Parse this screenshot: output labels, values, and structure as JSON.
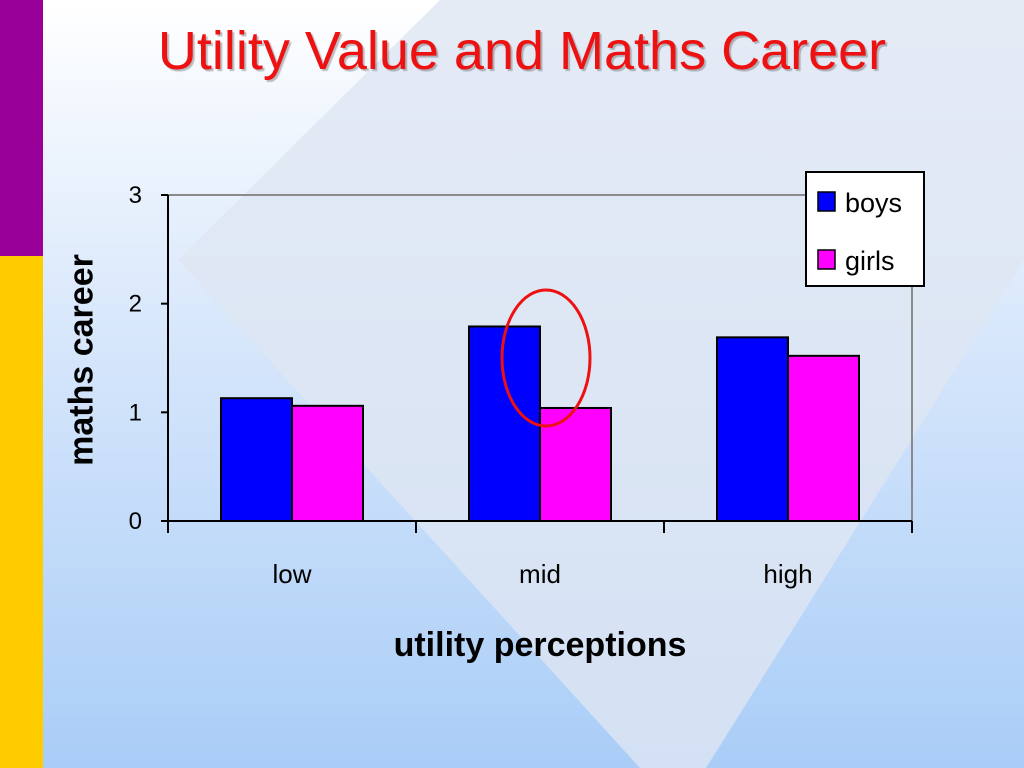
{
  "slide": {
    "title": "Utility Value and Maths Career"
  },
  "colors": {
    "background_top": "#ffffff",
    "background_bottom": "#a9cdf7",
    "band_purple": "#990099",
    "band_yellow": "#ffcc00",
    "title": "#ee1111",
    "boys": "#0000ff",
    "girls": "#ff00ff",
    "highlight_ellipse": "#ee1111"
  },
  "chart_data": {
    "type": "bar",
    "title": "",
    "xlabel": "utility perceptions",
    "ylabel": "maths career",
    "categories": [
      "low",
      "mid",
      "high"
    ],
    "series": [
      {
        "name": "boys",
        "values": [
          1.13,
          1.79,
          1.69
        ],
        "color": "#0000ff"
      },
      {
        "name": "girls",
        "values": [
          1.06,
          1.04,
          1.52
        ],
        "color": "#ff00ff"
      }
    ],
    "ylim": [
      0,
      3
    ],
    "yticks": [
      0,
      1,
      2,
      3
    ],
    "grid": false,
    "legend": "top-right",
    "annotations": [
      {
        "type": "ellipse",
        "category": "mid",
        "color": "#ee1111",
        "note": "circles boys and girls bars at mid"
      }
    ]
  }
}
